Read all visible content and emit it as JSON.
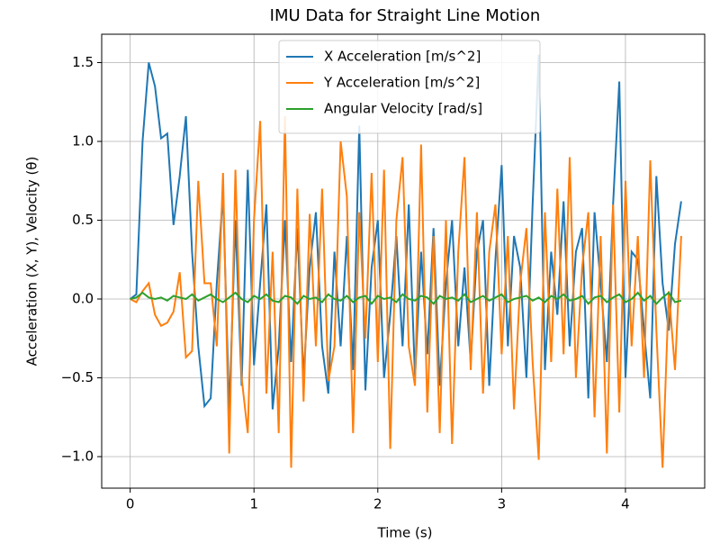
{
  "chart_data": {
    "type": "line",
    "title": "IMU Data for Straight Line Motion",
    "xlabel": "Time (s)",
    "ylabel": "Acceleration (X, Y), Velocity (θ)",
    "x": [
      0,
      0.05,
      0.1,
      0.15,
      0.2,
      0.25,
      0.3,
      0.35,
      0.4,
      0.45,
      0.5,
      0.55,
      0.6,
      0.65,
      0.7,
      0.75,
      0.8,
      0.85,
      0.9,
      0.95,
      1,
      1.05,
      1.1,
      1.15,
      1.2,
      1.25,
      1.3,
      1.35,
      1.4,
      1.45,
      1.5,
      1.55,
      1.6,
      1.65,
      1.7,
      1.75,
      1.8,
      1.85,
      1.9,
      1.95,
      2,
      2.05,
      2.1,
      2.15,
      2.2,
      2.25,
      2.3,
      2.35,
      2.4,
      2.45,
      2.5,
      2.55,
      2.6,
      2.65,
      2.7,
      2.75,
      2.8,
      2.85,
      2.9,
      2.95,
      3,
      3.05,
      3.1,
      3.15,
      3.2,
      3.25,
      3.3,
      3.35,
      3.4,
      3.45,
      3.5,
      3.55,
      3.6,
      3.65,
      3.7,
      3.75,
      3.8,
      3.85,
      3.9,
      3.95,
      4,
      4.05,
      4.1,
      4.15,
      4.2,
      4.25,
      4.3,
      4.35,
      4.4,
      4.45
    ],
    "series": [
      {
        "name": "X Acceleration [m/s^2]",
        "color": "#1f77b4",
        "values": [
          0,
          0.03,
          1.0,
          1.5,
          1.35,
          1.02,
          1.05,
          0.47,
          0.78,
          1.16,
          0.3,
          -0.3,
          -0.68,
          -0.63,
          0.1,
          0.67,
          -0.72,
          0.5,
          -0.55,
          0.82,
          -0.42,
          0.1,
          0.6,
          -0.7,
          -0.3,
          0.5,
          -0.4,
          0.45,
          -0.5,
          0.2,
          0.55,
          -0.3,
          -0.6,
          0.3,
          -0.3,
          0.4,
          -0.45,
          1.1,
          -0.58,
          0.2,
          0.5,
          -0.5,
          -0.1,
          0.4,
          -0.3,
          0.6,
          -0.5,
          0.3,
          -0.35,
          0.45,
          -0.55,
          0.1,
          0.5,
          -0.3,
          0.2,
          -0.4,
          0.3,
          0.5,
          -0.55,
          0.25,
          0.85,
          -0.3,
          0.4,
          0.2,
          -0.5,
          0.6,
          1.55,
          -0.45,
          0.3,
          -0.1,
          0.62,
          -0.3,
          0.3,
          0.45,
          -0.63,
          0.55,
          0.1,
          -0.4,
          0.6,
          1.38,
          -0.5,
          0.3,
          0.25,
          -0.2,
          -0.63,
          0.78,
          0.1,
          -0.2,
          0.35,
          0.62
        ]
      },
      {
        "name": "Y Acceleration [m/s^2]",
        "color": "#ff7f0e",
        "values": [
          0,
          -0.02,
          0.05,
          0.1,
          -0.1,
          -0.17,
          -0.15,
          -0.08,
          0.17,
          -0.37,
          -0.33,
          0.75,
          0.1,
          0.1,
          -0.3,
          0.8,
          -0.98,
          0.82,
          -0.5,
          -0.85,
          0.5,
          1.13,
          -0.6,
          0.3,
          -0.85,
          1.16,
          -1.07,
          0.7,
          -0.65,
          0.54,
          -0.3,
          0.7,
          -0.52,
          -0.3,
          1.0,
          0.65,
          -0.85,
          0.55,
          -0.25,
          0.8,
          -0.4,
          0.82,
          -0.95,
          0.5,
          0.9,
          -0.3,
          -0.55,
          0.98,
          -0.72,
          0.4,
          -0.85,
          0.5,
          -0.92,
          0.3,
          0.9,
          -0.45,
          0.55,
          -0.6,
          0.3,
          0.6,
          -0.35,
          0.4,
          -0.7,
          0.1,
          0.45,
          -0.4,
          -1.02,
          0.55,
          -0.4,
          0.7,
          -0.35,
          0.9,
          -0.5,
          0.2,
          0.55,
          -0.75,
          0.4,
          -0.98,
          0.6,
          -0.72,
          0.75,
          -0.3,
          0.4,
          -0.5,
          0.88,
          -0.2,
          -1.07,
          0.05,
          -0.45,
          0.4
        ]
      },
      {
        "name": "Angular Velocity [rad/s]",
        "color": "#2ca02c",
        "values": [
          0,
          0.01,
          0.04,
          0.01,
          0,
          0.01,
          -0.01,
          0.02,
          0.01,
          0,
          0.03,
          -0.01,
          0.01,
          0.03,
          0,
          -0.02,
          0.01,
          0.04,
          0,
          -0.02,
          0.02,
          0,
          0.03,
          -0.01,
          -0.02,
          0.02,
          0.01,
          -0.03,
          0.02,
          0,
          0.01,
          -0.02,
          0.03,
          0,
          -0.01,
          0.02,
          -0.02,
          0.01,
          0.02,
          -0.03,
          0.02,
          0,
          0.01,
          -0.02,
          0.03,
          0,
          -0.01,
          0.02,
          0.01,
          -0.03,
          0.02,
          0,
          0.01,
          -0.01,
          0.03,
          -0.02,
          0,
          0.02,
          -0.01,
          0.01,
          0.03,
          -0.02,
          0,
          0.01,
          0.02,
          -0.01,
          0.01,
          -0.02,
          0.02,
          0,
          0.03,
          -0.01,
          0,
          0.02,
          -0.03,
          0.01,
          0.02,
          -0.02,
          0.01,
          0.03,
          -0.02,
          0,
          0.04,
          -0.01,
          0.02,
          -0.03,
          0.01,
          0.04,
          -0.02,
          -0.01
        ]
      }
    ],
    "xlim": [
      -0.23,
      4.64
    ],
    "ylim": [
      -1.2,
      1.68
    ],
    "xticks": [
      0,
      1,
      2,
      3,
      4
    ],
    "yticks": [
      {
        "value": -1.0,
        "label": "−1.0"
      },
      {
        "value": -0.5,
        "label": "−0.5"
      },
      {
        "value": 0.0,
        "label": "0.0"
      },
      0.5,
      {
        "value": 1.0,
        "label": "1.0"
      },
      1.5
    ],
    "grid": true,
    "legend": "upper center"
  }
}
